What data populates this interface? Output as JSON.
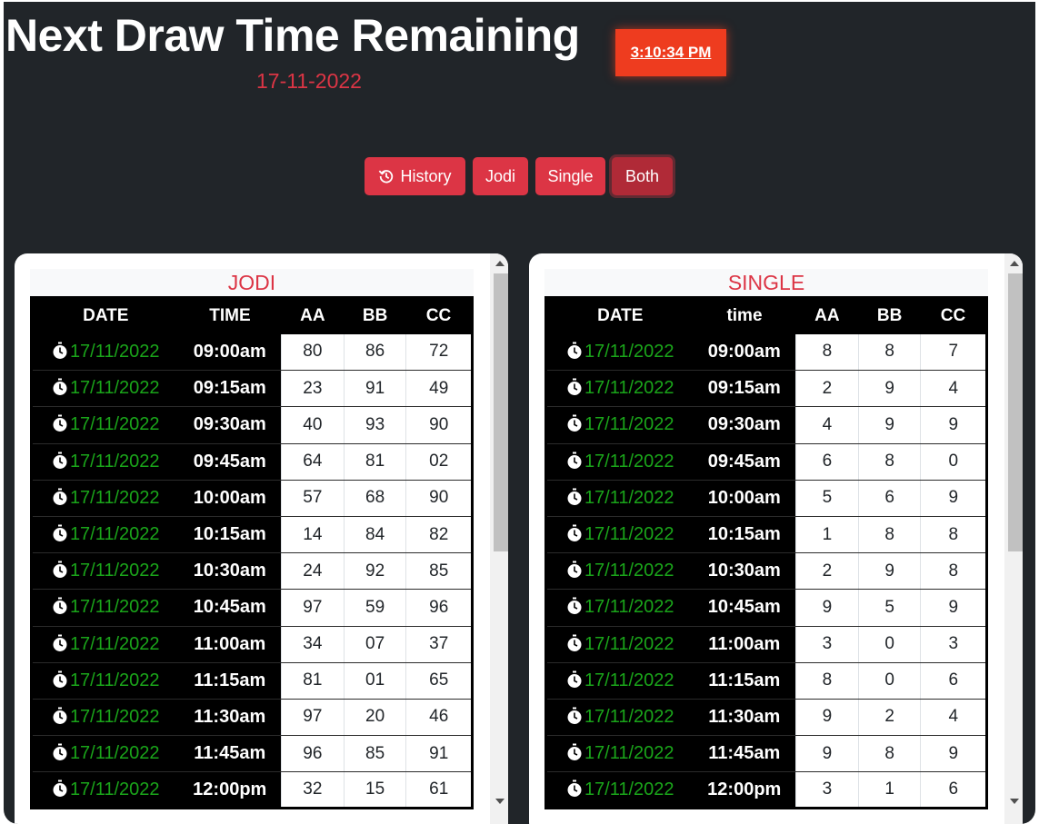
{
  "header": {
    "title": "Next Draw Time Remaining",
    "timer": "3:10:34 PM",
    "date": "17-11-2022"
  },
  "buttons": {
    "history": "History",
    "jodi": "Jodi",
    "single": "Single",
    "both": "Both"
  },
  "jodi": {
    "title": "JODI",
    "headers": [
      "DATE",
      "TIME",
      "AA",
      "BB",
      "CC"
    ],
    "rows": [
      {
        "date": "17/11/2022",
        "time": "09:00am",
        "aa": "80",
        "bb": "86",
        "cc": "72"
      },
      {
        "date": "17/11/2022",
        "time": "09:15am",
        "aa": "23",
        "bb": "91",
        "cc": "49"
      },
      {
        "date": "17/11/2022",
        "time": "09:30am",
        "aa": "40",
        "bb": "93",
        "cc": "90"
      },
      {
        "date": "17/11/2022",
        "time": "09:45am",
        "aa": "64",
        "bb": "81",
        "cc": "02"
      },
      {
        "date": "17/11/2022",
        "time": "10:00am",
        "aa": "57",
        "bb": "68",
        "cc": "90"
      },
      {
        "date": "17/11/2022",
        "time": "10:15am",
        "aa": "14",
        "bb": "84",
        "cc": "82"
      },
      {
        "date": "17/11/2022",
        "time": "10:30am",
        "aa": "24",
        "bb": "92",
        "cc": "85"
      },
      {
        "date": "17/11/2022",
        "time": "10:45am",
        "aa": "97",
        "bb": "59",
        "cc": "96"
      },
      {
        "date": "17/11/2022",
        "time": "11:00am",
        "aa": "34",
        "bb": "07",
        "cc": "37"
      },
      {
        "date": "17/11/2022",
        "time": "11:15am",
        "aa": "81",
        "bb": "01",
        "cc": "65"
      },
      {
        "date": "17/11/2022",
        "time": "11:30am",
        "aa": "97",
        "bb": "20",
        "cc": "46"
      },
      {
        "date": "17/11/2022",
        "time": "11:45am",
        "aa": "96",
        "bb": "85",
        "cc": "91"
      },
      {
        "date": "17/11/2022",
        "time": "12:00pm",
        "aa": "32",
        "bb": "15",
        "cc": "61"
      }
    ]
  },
  "single": {
    "title": "SINGLE",
    "headers": [
      "DATE",
      "time",
      "AA",
      "BB",
      "CC"
    ],
    "rows": [
      {
        "date": "17/11/2022",
        "time": "09:00am",
        "aa": "8",
        "bb": "8",
        "cc": "7"
      },
      {
        "date": "17/11/2022",
        "time": "09:15am",
        "aa": "2",
        "bb": "9",
        "cc": "4"
      },
      {
        "date": "17/11/2022",
        "time": "09:30am",
        "aa": "4",
        "bb": "9",
        "cc": "9"
      },
      {
        "date": "17/11/2022",
        "time": "09:45am",
        "aa": "6",
        "bb": "8",
        "cc": "0"
      },
      {
        "date": "17/11/2022",
        "time": "10:00am",
        "aa": "5",
        "bb": "6",
        "cc": "9"
      },
      {
        "date": "17/11/2022",
        "time": "10:15am",
        "aa": "1",
        "bb": "8",
        "cc": "8"
      },
      {
        "date": "17/11/2022",
        "time": "10:30am",
        "aa": "2",
        "bb": "9",
        "cc": "8"
      },
      {
        "date": "17/11/2022",
        "time": "10:45am",
        "aa": "9",
        "bb": "5",
        "cc": "9"
      },
      {
        "date": "17/11/2022",
        "time": "11:00am",
        "aa": "3",
        "bb": "0",
        "cc": "3"
      },
      {
        "date": "17/11/2022",
        "time": "11:15am",
        "aa": "8",
        "bb": "0",
        "cc": "6"
      },
      {
        "date": "17/11/2022",
        "time": "11:30am",
        "aa": "9",
        "bb": "2",
        "cc": "4"
      },
      {
        "date": "17/11/2022",
        "time": "11:45am",
        "aa": "9",
        "bb": "8",
        "cc": "9"
      },
      {
        "date": "17/11/2022",
        "time": "12:00pm",
        "aa": "3",
        "bb": "1",
        "cc": "6"
      }
    ]
  },
  "icons": {
    "history": "history-icon",
    "row": "stopwatch-icon"
  },
  "colors": {
    "background": "#212529",
    "accent": "#dc3545",
    "timer": "#ee3c1f",
    "date_text": "#1aa51a"
  }
}
